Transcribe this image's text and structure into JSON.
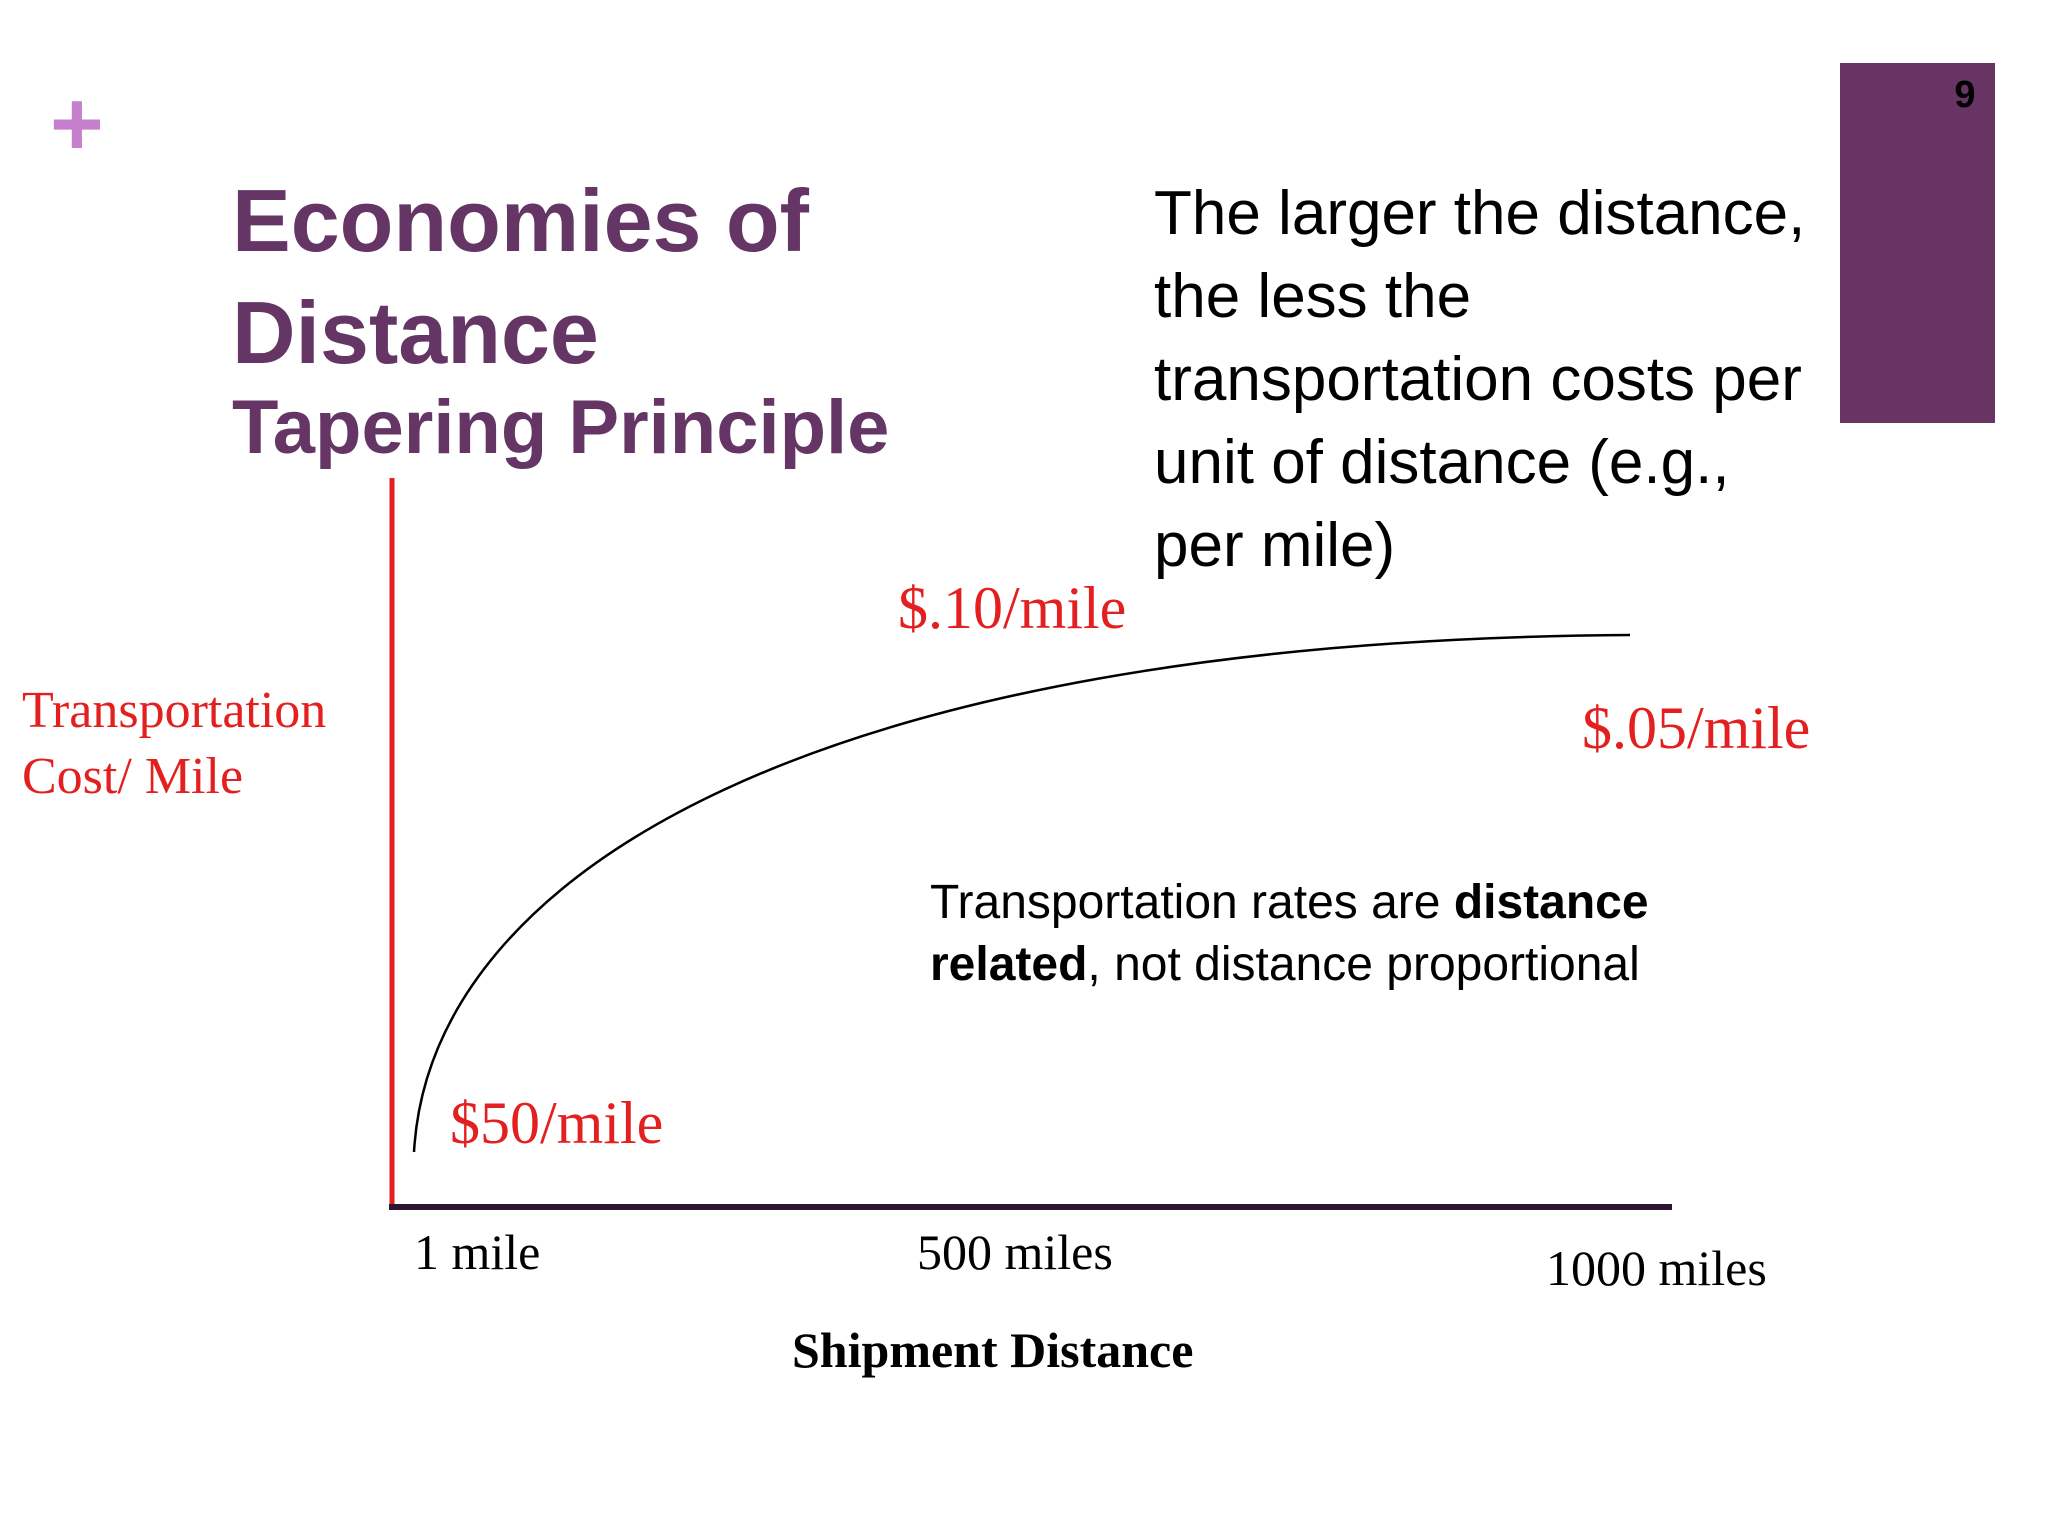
{
  "slide": {
    "plus_symbol": "+",
    "page_number": "9",
    "title_lines": [
      "Economies of",
      "Distance"
    ],
    "subtitle": "Tapering Principle",
    "description_lines": [
      "The larger the distance,",
      "the less the",
      "transportation costs per",
      "unit of distance (e.g.,",
      "per mile)"
    ],
    "note": {
      "line1_plain": "Transportation rates are ",
      "line1_bold": "distance",
      "line2_bold": "related",
      "line2_plain": ", not distance proportional"
    },
    "colors": {
      "accent": "#643565",
      "page_box": "#673463",
      "plus": "#c57fcc",
      "axis_red": "#e31f1f",
      "x_axis": "#2e1530"
    }
  },
  "chart_data": {
    "type": "line",
    "xlabel": "Shipment Distance",
    "ylabel_lines": [
      "Transportation",
      "Cost/ Mile"
    ],
    "x_tick_labels": [
      "1 mile",
      "500 miles",
      "1000 miles"
    ],
    "annotations": [
      "$50/mile",
      "$.10/mile",
      "$.05/mile"
    ],
    "grid": false,
    "curve_shape": "concave rising, flattening toward the right"
  }
}
